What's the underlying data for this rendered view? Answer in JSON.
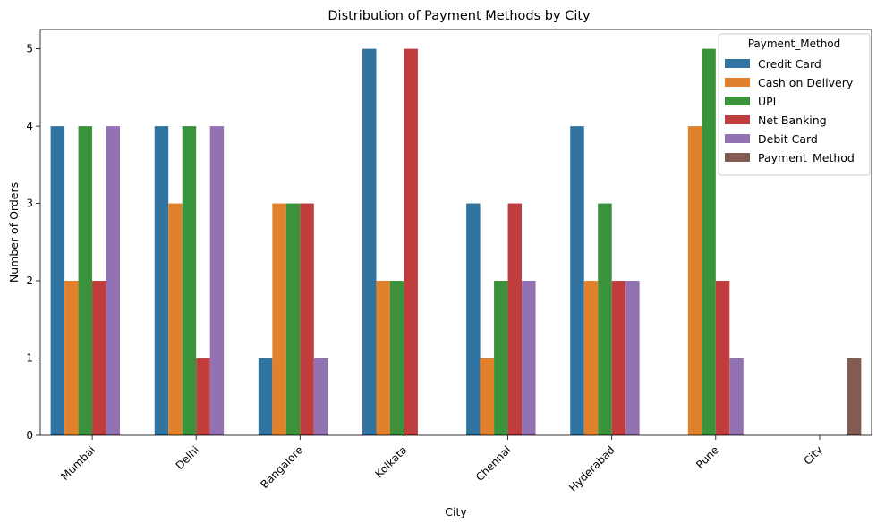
{
  "chart_data": {
    "type": "bar",
    "title": "Distribution of Payment Methods by City",
    "xlabel": "City",
    "ylabel": "Number of Orders",
    "ylim": [
      0,
      5.25
    ],
    "yticks": [
      "0",
      "1",
      "2",
      "3",
      "4",
      "5"
    ],
    "categories": [
      "Mumbai",
      "Delhi",
      "Bangalore",
      "Kolkata",
      "Chennai",
      "Hyderabad",
      "Pune",
      "City"
    ],
    "legend": {
      "title": "Payment_Method",
      "position": "top-right"
    },
    "series": [
      {
        "name": "Credit Card",
        "color": "#3274a1",
        "values": [
          4,
          4,
          1,
          5,
          3,
          4,
          null,
          null
        ]
      },
      {
        "name": "Cash on Delivery",
        "color": "#e1812c",
        "values": [
          2,
          3,
          3,
          2,
          1,
          2,
          4,
          null
        ]
      },
      {
        "name": "UPI",
        "color": "#3a923a",
        "values": [
          4,
          4,
          3,
          2,
          2,
          3,
          5,
          null
        ]
      },
      {
        "name": "Net Banking",
        "color": "#c03d3e",
        "values": [
          2,
          1,
          3,
          5,
          3,
          2,
          2,
          null
        ]
      },
      {
        "name": "Debit Card",
        "color": "#9372b2",
        "values": [
          4,
          4,
          1,
          null,
          2,
          2,
          1,
          null
        ]
      },
      {
        "name": "Payment_Method",
        "color": "#845b53",
        "values": [
          null,
          null,
          null,
          null,
          null,
          null,
          null,
          1
        ]
      }
    ],
    "grid": false
  }
}
